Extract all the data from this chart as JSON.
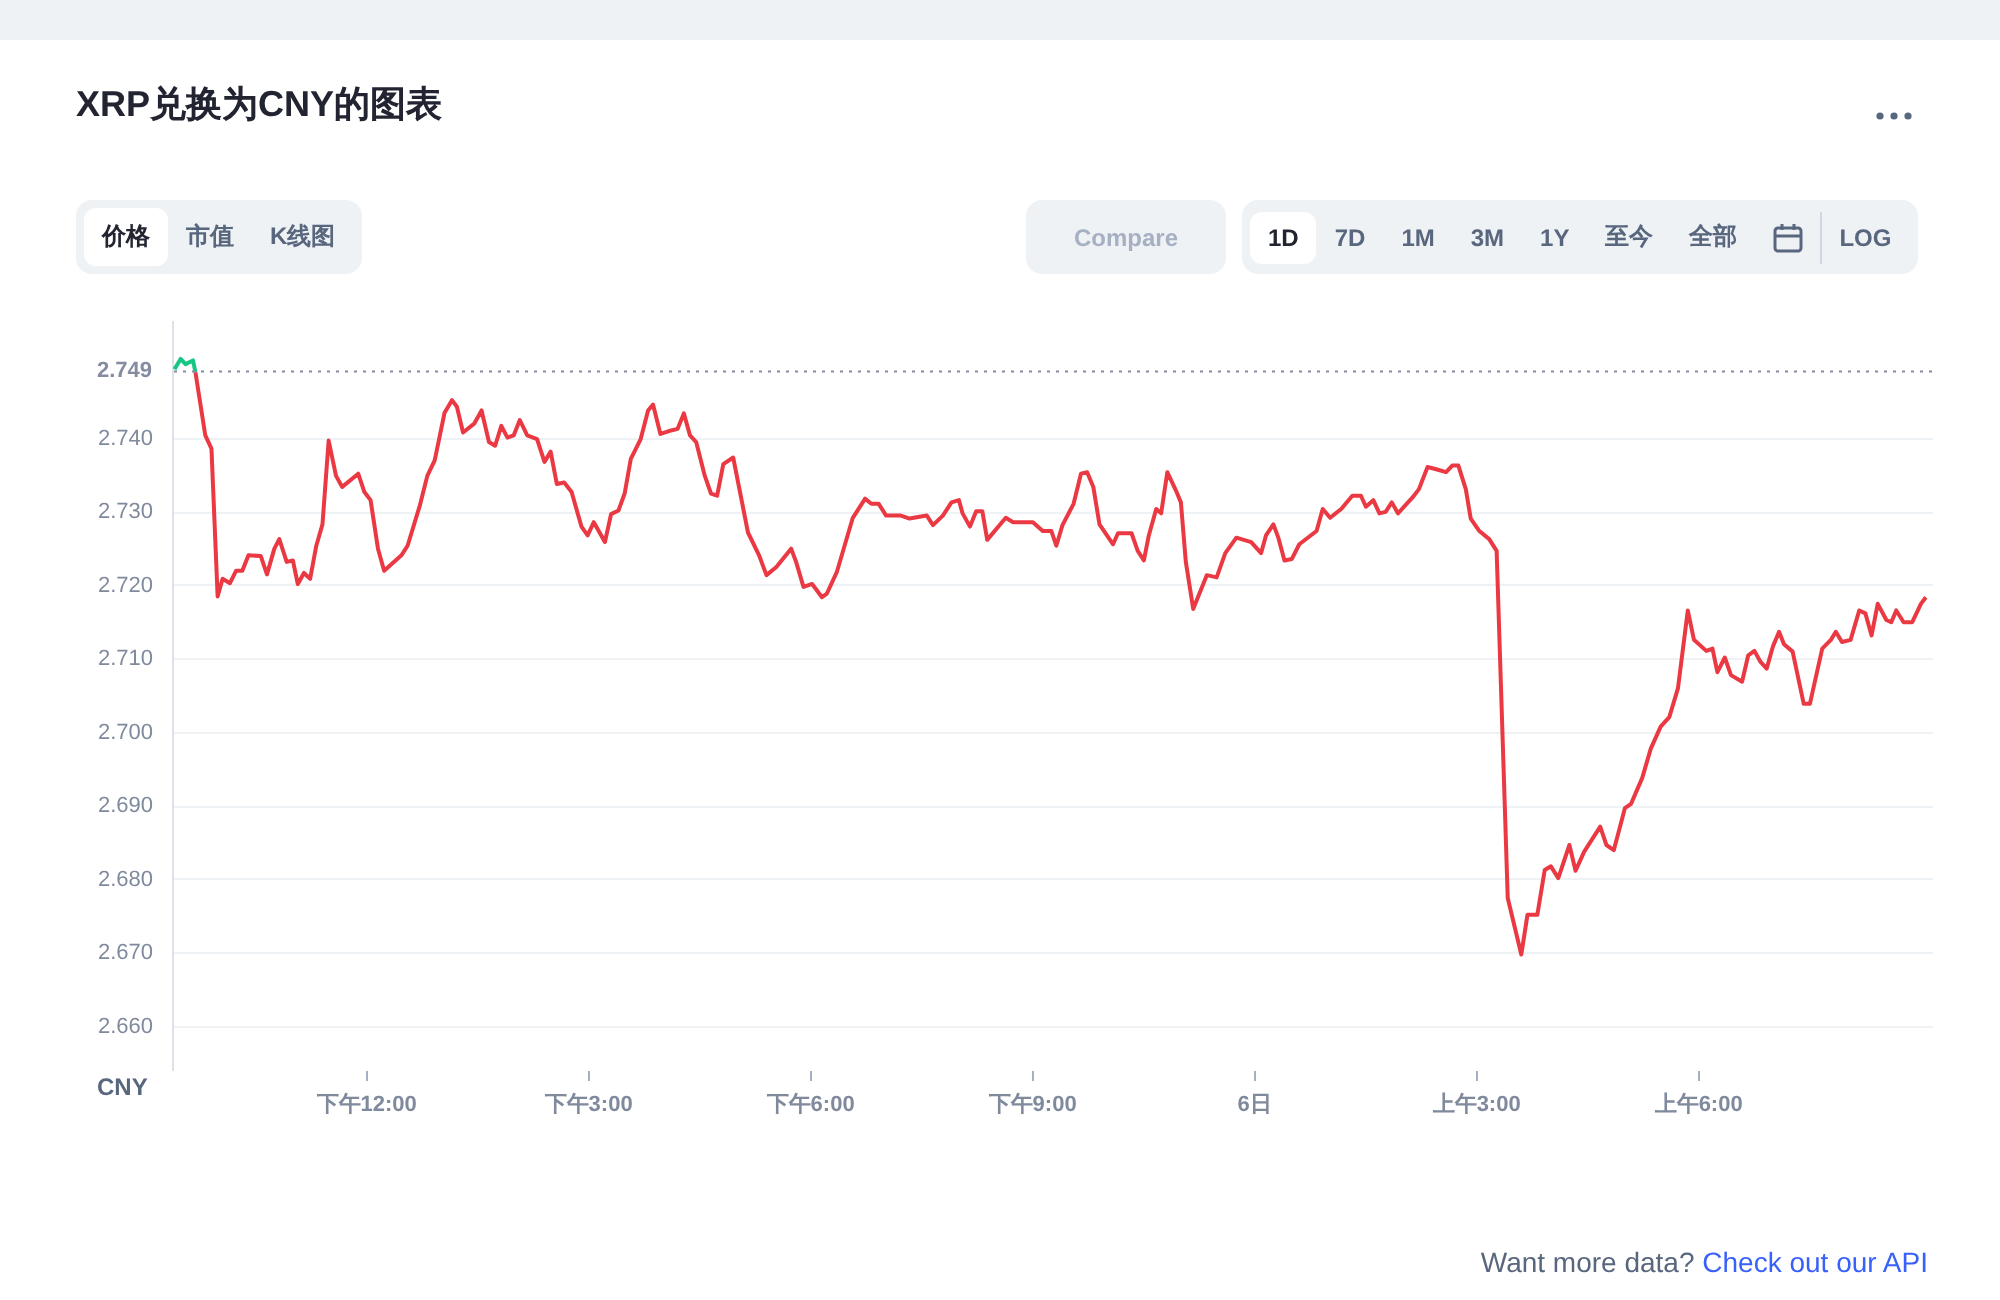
{
  "chart_data": {
    "type": "line",
    "title": "XRP兑换为CNY的图表",
    "ylabel": "CNY",
    "xlim": [
      "--01-05T09:23",
      "--01-06T09:10"
    ],
    "ylim": [
      2.654,
      2.756
    ],
    "xticks": [
      {
        "value": "--01-05T12:00",
        "label": "下午12:00"
      },
      {
        "value": "--01-05T15:00",
        "label": "下午3:00"
      },
      {
        "value": "--01-05T18:00",
        "label": "下午6:00"
      },
      {
        "value": "--01-05T21:00",
        "label": "下午9:00"
      },
      {
        "value": "--01-06T00:00",
        "label": "6日"
      },
      {
        "value": "--01-06T03:00",
        "label": "上午3:00"
      },
      {
        "value": "--01-06T06:00",
        "label": "上午6:00"
      }
    ],
    "yticks": [
      {
        "value": 2.66,
        "label": "2.660"
      },
      {
        "value": 2.67,
        "label": "2.670"
      },
      {
        "value": 2.68,
        "label": "2.680"
      },
      {
        "value": 2.69,
        "label": "2.690"
      },
      {
        "value": 2.7,
        "label": "2.700"
      },
      {
        "value": 2.71,
        "label": "2.710"
      },
      {
        "value": 2.72,
        "label": "2.720"
      },
      {
        "value": 2.73,
        "label": "2.730"
      },
      {
        "value": 2.74,
        "label": "2.740"
      }
    ],
    "grid": "y",
    "marker": "none",
    "ref_lines": [
      {
        "axis": "y",
        "value": 2.749,
        "label": "2.749",
        "line_style": "dotted",
        "color": "#858ca2"
      }
    ],
    "annotations": [
      "价格",
      "市值",
      "K线图",
      "Compare",
      "1D",
      "7D",
      "1M",
      "3M",
      "1Y",
      "至今",
      "全部",
      "LOG",
      "Want more data?",
      "Check out our API"
    ],
    "series": [
      {
        "color": "#16c784",
        "x": [
          "--01-05T09:25",
          "--01-05T09:30",
          "--01-05T09:34",
          "--01-05T09:40",
          "--01-05T09:42"
        ],
        "values": [
          2.7493,
          2.7507,
          2.75,
          2.7505,
          2.7489
        ]
      },
      {
        "color": "#ea3943",
        "x": [
          "--01-05T09:42",
          "--01-05T09:50",
          "--01-05T09:55",
          "--01-05T10:00",
          "--01-05T10:04",
          "--01-05T10:10",
          "--01-05T10:15",
          "--01-05T10:20",
          "--01-05T10:25",
          "--01-05T10:35",
          "--01-05T10:40",
          "--01-05T10:46",
          "--01-05T10:50",
          "--01-05T10:56",
          "--01-05T11:01",
          "--01-05T11:05",
          "--01-05T11:10",
          "--01-05T11:15",
          "--01-05T11:20",
          "--01-05T11:25",
          "--01-05T11:30",
          "--01-05T11:36",
          "--01-05T11:41",
          "--01-05T11:54",
          "--01-05T11:59",
          "--01-05T12:04",
          "--01-05T12:10",
          "--01-05T12:15",
          "--01-05T12:29",
          "--01-05T12:34",
          "--01-05T12:44",
          "--01-05T12:50",
          "--01-05T12:56",
          "--01-05T13:04",
          "--01-05T13:10",
          "--01-05T13:14",
          "--01-05T13:19",
          "--01-05T13:28",
          "--01-05T13:34",
          "--01-05T13:40",
          "--01-05T13:45",
          "--01-05T13:50",
          "--01-05T13:55",
          "--01-05T14:00",
          "--01-05T14:05",
          "--01-05T14:11",
          "--01-05T14:19",
          "--01-05T14:25",
          "--01-05T14:30",
          "--01-05T14:35",
          "--01-05T14:41",
          "--01-05T14:47",
          "--01-05T14:55",
          "--01-05T15:00",
          "--01-05T15:05",
          "--01-05T15:14",
          "--01-05T15:19",
          "--01-05T15:25",
          "--01-05T15:30",
          "--01-05T15:35",
          "--01-05T15:43",
          "--01-05T15:49",
          "--01-05T15:53",
          "--01-05T15:59",
          "--01-05T16:06",
          "--01-05T16:13",
          "--01-05T16:18",
          "--01-05T16:23",
          "--01-05T16:28",
          "--01-05T16:35",
          "--01-05T16:40",
          "--01-05T16:45",
          "--01-05T16:50",
          "--01-05T16:58",
          "--01-05T17:10",
          "--01-05T17:19",
          "--01-05T17:25",
          "--01-05T17:33",
          "--01-05T17:45",
          "--01-05T17:49",
          "--01-05T17:55",
          "--01-05T18:02",
          "--01-05T18:10",
          "--01-05T18:14",
          "--01-05T18:22",
          "--01-05T18:35",
          "--01-05T18:45",
          "--01-05T18:50",
          "--01-05T18:56",
          "--01-05T19:02",
          "--01-05T19:14",
          "--01-05T19:21",
          "--01-05T19:35",
          "--01-05T19:40",
          "--01-05T19:48",
          "--01-05T19:55",
          "--01-05T20:01",
          "--01-05T20:04",
          "--01-05T20:10",
          "--01-05T20:15",
          "--01-05T20:20",
          "--01-05T20:24",
          "--01-05T20:39",
          "--01-05T20:45",
          "--01-05T21:01",
          "--01-05T21:09",
          "--01-05T21:16",
          "--01-05T21:20",
          "--01-05T21:25",
          "--01-05T21:34",
          "--01-05T21:40",
          "--01-05T21:45",
          "--01-05T21:50",
          "--01-05T21:55",
          "--01-05T22:06",
          "--01-05T22:10",
          "--01-05T22:21",
          "--01-05T22:26",
          "--01-05T22:31",
          "--01-05T22:35",
          "--01-05T22:41",
          "--01-05T22:45",
          "--01-05T22:50",
          "--01-05T22:57",
          "--01-05T23:01",
          "--01-05T23:05",
          "--01-05T23:11",
          "--01-05T23:22",
          "--01-05T23:30",
          "--01-05T23:37",
          "--01-05T23:46",
          "--01-05T23:58",
          "--01-06T00:06",
          "--01-06T00:10",
          "--01-06T00:16",
          "--01-06T00:20",
          "--01-06T00:25",
          "--01-06T00:31",
          "--01-06T00:37",
          "--01-06T00:51",
          "--01-06T00:56",
          "--01-06T01:02",
          "--01-06T01:11",
          "--01-06T01:20",
          "--01-06T01:27",
          "--01-06T01:31",
          "--01-06T01:37",
          "--01-06T01:42",
          "--01-06T01:47",
          "--01-06T01:52",
          "--01-06T01:57",
          "--01-06T02:09",
          "--01-06T02:14",
          "--01-06T02:21",
          "--01-06T02:28",
          "--01-06T02:36",
          "--01-06T02:41",
          "--01-06T02:46",
          "--01-06T02:52",
          "--01-06T02:56",
          "--01-06T03:03",
          "--01-06T03:11",
          "--01-06T03:17",
          "--01-06T03:26",
          "--01-06T03:37",
          "--01-06T03:42",
          "--01-06T03:50",
          "--01-06T03:56",
          "--01-06T04:01",
          "--01-06T04:07",
          "--01-06T04:16",
          "--01-06T04:21",
          "--01-06T04:28",
          "--01-06T04:41",
          "--01-06T04:46",
          "--01-06T04:52",
          "--01-06T05:01",
          "--01-06T05:06",
          "--01-06T05:15",
          "--01-06T05:22",
          "--01-06T05:30",
          "--01-06T05:37",
          "--01-06T05:44",
          "--01-06T05:52",
          "--01-06T05:57",
          "--01-06T06:07",
          "--01-06T06:12",
          "--01-06T06:16",
          "--01-06T06:22",
          "--01-06T06:27",
          "--01-06T06:36",
          "--01-06T06:41",
          "--01-06T06:46",
          "--01-06T06:51",
          "--01-06T06:56",
          "--01-06T07:01",
          "--01-06T07:06",
          "--01-06T07:10",
          "--01-06T07:17",
          "--01-06T07:26",
          "--01-06T07:31",
          "--01-06T07:41",
          "--01-06T07:48",
          "--01-06T07:52",
          "--01-06T07:57",
          "--01-06T08:04",
          "--01-06T08:11",
          "--01-06T08:16",
          "--01-06T08:21",
          "--01-06T08:26",
          "--01-06T08:33",
          "--01-06T08:37",
          "--01-06T08:41",
          "--01-06T08:47",
          "--01-06T08:54",
          "--01-06T09:01",
          "--01-06T09:05"
        ],
        "values": [
          2.7489,
          2.7403,
          2.7385,
          2.7184,
          2.7208,
          2.7202,
          2.7219,
          2.7219,
          2.724,
          2.7239,
          2.7214,
          2.7249,
          2.7262,
          2.7231,
          2.7233,
          2.7201,
          2.7216,
          2.7208,
          2.7253,
          2.7282,
          2.7396,
          2.7348,
          2.7333,
          2.7351,
          2.7326,
          2.7315,
          2.7249,
          2.7219,
          2.724,
          2.7253,
          2.7308,
          2.7348,
          2.7369,
          2.7434,
          2.7451,
          2.7442,
          2.7407,
          2.7419,
          2.7437,
          2.7394,
          2.7389,
          2.7416,
          2.74,
          2.7403,
          2.7424,
          2.7403,
          2.7398,
          2.7367,
          2.7381,
          2.7337,
          2.7339,
          2.7326,
          2.7279,
          2.7267,
          2.7285,
          2.7258,
          2.7296,
          2.7301,
          2.7324,
          2.7371,
          2.7398,
          2.7437,
          2.7445,
          2.7405,
          2.7409,
          2.7412,
          2.7433,
          2.7403,
          2.7394,
          2.7348,
          2.7324,
          2.7321,
          2.7364,
          2.7373,
          2.7271,
          2.724,
          2.7213,
          2.7224,
          2.7249,
          2.7231,
          2.7197,
          2.7201,
          2.7183,
          2.7188,
          2.7217,
          2.7291,
          2.7317,
          2.731,
          2.731,
          2.7294,
          2.7294,
          2.729,
          2.7294,
          2.7281,
          2.7294,
          2.7312,
          2.7315,
          2.7297,
          2.7279,
          2.73,
          2.73,
          2.7261,
          2.7291,
          2.7285,
          2.7285,
          2.7273,
          2.7273,
          2.7253,
          2.7281,
          2.731,
          2.7351,
          2.7353,
          2.7333,
          2.7282,
          2.7255,
          2.727,
          2.727,
          2.7246,
          2.7233,
          2.7267,
          2.7303,
          2.7297,
          2.7353,
          2.7328,
          2.7312,
          2.7231,
          2.7167,
          2.7213,
          2.721,
          2.7243,
          2.7264,
          2.7258,
          2.7243,
          2.7267,
          2.7282,
          2.7264,
          2.7233,
          2.7235,
          2.7255,
          2.7273,
          2.7303,
          2.7291,
          2.7303,
          2.7321,
          2.7321,
          2.7306,
          2.7315,
          2.7297,
          2.7299,
          2.7312,
          2.7297,
          2.7319,
          2.733,
          2.736,
          2.7357,
          2.7353,
          2.7362,
          2.7362,
          2.733,
          2.729,
          2.7273,
          2.7262,
          2.7246,
          2.6774,
          2.6697,
          2.6751,
          2.6751,
          2.6812,
          2.6817,
          2.6801,
          2.6846,
          2.6811,
          2.6837,
          2.6871,
          2.6846,
          2.6839,
          2.6896,
          2.6902,
          2.6937,
          2.6977,
          2.7007,
          2.702,
          2.7059,
          2.7165,
          2.7125,
          2.711,
          2.7113,
          2.7081,
          2.7101,
          2.7077,
          2.7068,
          2.7104,
          2.711,
          2.7095,
          2.7086,
          2.7116,
          2.7136,
          2.7119,
          2.7109,
          2.7038,
          2.7038,
          2.7113,
          2.7125,
          2.7136,
          2.7122,
          2.7125,
          2.7165,
          2.7161,
          2.7131,
          2.7174,
          2.7152,
          2.7149,
          2.7165,
          2.7149,
          2.7149,
          2.7174,
          2.7183
        ]
      }
    ]
  }
}
